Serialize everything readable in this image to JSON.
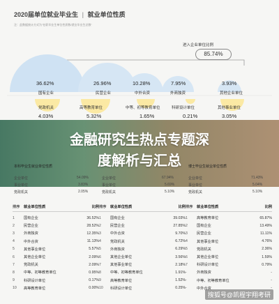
{
  "header": {
    "title_main": "2020届单位就业毕业生",
    "title_sep": "|",
    "title_sub": "就业单位性质",
    "note": "注：此数据统计方式为\"在职毕业生单位性质数/就业毕业生总数\""
  },
  "enterprise_ratio": {
    "label": "进入企业单位比例",
    "value": "85.74%"
  },
  "bubbles": [
    {
      "pct": "36.62%",
      "label": "国有企业"
    },
    {
      "pct": "26.96%",
      "label": "民营企业"
    },
    {
      "pct": "10.28%",
      "label": "中外合资"
    },
    {
      "pct": "7.95%",
      "label": "外商独资"
    },
    {
      "pct": "3.93%",
      "label": "其他企业单位"
    }
  ],
  "bottom_bubbles": [
    {
      "pct": "4.03%",
      "label": "党政机关"
    },
    {
      "pct": "5.32%",
      "label": "高等教育单位"
    },
    {
      "pct": "1.65%",
      "label": "中等、初等教育单位"
    },
    {
      "pct": "0.21%",
      "label": "科研设计单位"
    },
    {
      "pct": "3.05%",
      "label": "其他事业单位"
    }
  ],
  "banner": {
    "line1": "金融研究生热点专题深",
    "line2": "度解析与汇总"
  },
  "mini_items": [
    {
      "name": "本科毕业生就业单位性质",
      "val": ""
    },
    {
      "name": "企业单位",
      "val": "54.09%"
    },
    {
      "name": "事业单位",
      "val": "3.83%"
    },
    {
      "name": "党政机关",
      "val": "2.05%"
    },
    {
      "name": "企业单位",
      "val": "67.94%"
    },
    {
      "name": "事业单位",
      "val": "5.69%"
    },
    {
      "name": "党政机关",
      "val": "5.10%"
    },
    {
      "name": "博士毕业生就业单位性质",
      "val": ""
    },
    {
      "name": "企业单位",
      "val": "71.43%"
    },
    {
      "name": "事业单位",
      "val": "5.04%"
    },
    {
      "name": "党政机关",
      "val": "5.10%"
    }
  ],
  "tables": [
    {
      "h_rank": "排序",
      "h_name": "就业单位性质",
      "h_pct": "比例",
      "rows": [
        {
          "rank": "1",
          "name": "国有企业",
          "pct": "36.52%"
        },
        {
          "rank": "2",
          "name": "民营企业",
          "pct": "28.52%"
        },
        {
          "rank": "3",
          "name": "外商独资",
          "pct": "12.35%"
        },
        {
          "rank": "4",
          "name": "中外合资",
          "pct": "11.13%"
        },
        {
          "rank": "5",
          "name": "其他事业单位",
          "pct": "5.57%"
        },
        {
          "rank": "6",
          "name": "其他企业单位",
          "pct": "2.09%"
        },
        {
          "rank": "7",
          "name": "党政机关",
          "pct": "2.09%"
        },
        {
          "rank": "8",
          "name": "中等、初等教育单位",
          "pct": "0.95%"
        },
        {
          "rank": "9",
          "name": "科研设计单位",
          "pct": "0.17%"
        },
        {
          "rank": "10",
          "name": "高等教育单位",
          "pct": "0.00%"
        }
      ]
    },
    {
      "h_rank": "排序",
      "h_name": "就业单位性质",
      "h_pct": "比例",
      "rows": [
        {
          "rank": "1",
          "name": "国有企业",
          "pct": "39.03%"
        },
        {
          "rank": "2",
          "name": "民营企业",
          "pct": "27.85%"
        },
        {
          "rank": "3",
          "name": "中外合资",
          "pct": "9.70%"
        },
        {
          "rank": "4",
          "name": "党政机关",
          "pct": "6.72%"
        },
        {
          "rank": "5",
          "name": "外商独资",
          "pct": "6.29%"
        },
        {
          "rank": "6",
          "name": "其他企业单位",
          "pct": "3.56%"
        },
        {
          "rank": "7",
          "name": "其他事业单位",
          "pct": "2.18%"
        },
        {
          "rank": "8",
          "name": "中等、初等教育单位",
          "pct": "1.91%"
        },
        {
          "rank": "9",
          "name": "高等教育单位",
          "pct": "1.52%"
        },
        {
          "rank": "10",
          "name": "科研设计单位",
          "pct": "0.25%"
        }
      ]
    },
    {
      "h_rank": "排序",
      "h_name": "就业单位性质",
      "h_pct": "比例",
      "rows": [
        {
          "rank": "1",
          "name": "高等教育单位",
          "pct": "65.87%"
        },
        {
          "rank": "2",
          "name": "国有企业",
          "pct": "13.49%"
        },
        {
          "rank": "3",
          "name": "民营企业",
          "pct": "11.11%"
        },
        {
          "rank": "4",
          "name": "其他事业单位",
          "pct": "4.76%"
        },
        {
          "rank": "5",
          "name": "党政机关",
          "pct": "2.36%"
        },
        {
          "rank": "6",
          "name": "其他企业单位",
          "pct": "1.59%"
        },
        {
          "rank": "7",
          "name": "科研设计单位",
          "pct": "0.79%"
        },
        {
          "rank": "-",
          "name": "外商独资",
          "pct": "-"
        },
        {
          "rank": "-",
          "name": "中等、初等教育单位",
          "pct": "-"
        },
        {
          "rank": "-",
          "name": "中外合资",
          "pct": "-"
        }
      ]
    }
  ],
  "watermark": "搜狐号@凯程宇翔考研",
  "colors": {
    "bubble_blue": "#cfe2f3",
    "bubble_yellow": "#fbe9a4",
    "banner_green": "#3a6f58",
    "banner_tan": "#a8896a"
  }
}
